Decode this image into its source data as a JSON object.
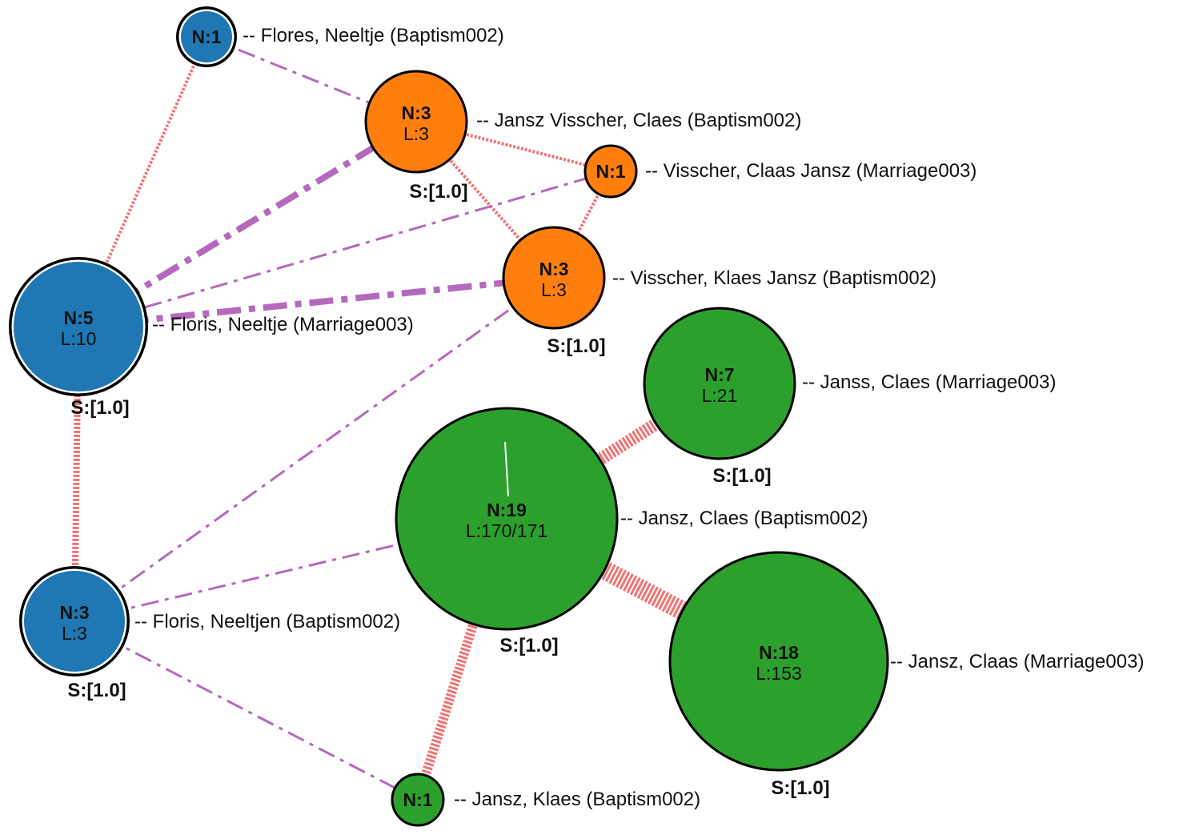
{
  "colors": {
    "blue": "#1f77b4",
    "orange": "#ff7f0e",
    "green": "#2ca02c",
    "strong_link": "#f07474",
    "weak_link": "#b469bd"
  },
  "nodes": [
    {
      "id": "flores_neeltje_b",
      "group": "blue",
      "count": "N:1",
      "links": "",
      "score": "",
      "label": "-- Flores, Neeltje (Baptism002)",
      "ring": true
    },
    {
      "id": "jansz_visscher_claes_b",
      "group": "orange",
      "count": "N:3",
      "links": "L:3",
      "score": "S:[1.0]",
      "label": "-- Jansz Visscher, Claes (Baptism002)",
      "ring": false
    },
    {
      "id": "visscher_claas_jansz_m",
      "group": "orange",
      "count": "N:1",
      "links": "",
      "score": "",
      "label": "-- Visscher, Claas Jansz (Marriage003)",
      "ring": false
    },
    {
      "id": "visscher_klaes_jansz_b",
      "group": "orange",
      "count": "N:3",
      "links": "L:3",
      "score": "S:[1.0]",
      "label": "-- Visscher, Klaes Jansz (Baptism002)",
      "ring": false
    },
    {
      "id": "floris_neeltje_m",
      "group": "blue",
      "count": "N:5",
      "links": "L:10",
      "score": "S:[1.0]",
      "label": "-- Floris, Neeltje (Marriage003)",
      "ring": true
    },
    {
      "id": "janss_claes_m",
      "group": "green",
      "count": "N:7",
      "links": "L:21",
      "score": "S:[1.0]",
      "label": "-- Janss, Claes (Marriage003)",
      "ring": false
    },
    {
      "id": "jansz_claes_b",
      "group": "green",
      "count": "N:19",
      "links": "L:170/171",
      "score": "S:[1.0]",
      "label": "-- Jansz, Claes (Baptism002)",
      "ring": false
    },
    {
      "id": "floris_neeltjen_b",
      "group": "blue",
      "count": "N:3",
      "links": "L:3",
      "score": "S:[1.0]",
      "label": "-- Floris, Neeltjen (Baptism002)",
      "ring": true
    },
    {
      "id": "jansz_claas_m",
      "group": "green",
      "count": "N:18",
      "links": "L:153",
      "score": "S:[1.0]",
      "label": "-- Jansz, Claas (Marriage003)",
      "ring": false
    },
    {
      "id": "jansz_klaes_b",
      "group": "green",
      "count": "N:1",
      "links": "",
      "score": "",
      "label": "-- Jansz, Klaes (Baptism002)",
      "ring": false
    }
  ],
  "edges": [
    {
      "source": "flores_neeltje_b",
      "target": "floris_neeltje_m",
      "kind": "strong",
      "weight": 1
    },
    {
      "source": "flores_neeltje_b",
      "target": "jansz_visscher_claes_b",
      "kind": "weak",
      "weight": 1
    },
    {
      "source": "jansz_visscher_claes_b",
      "target": "visscher_claas_jansz_m",
      "kind": "strong",
      "weight": 1
    },
    {
      "source": "jansz_visscher_claes_b",
      "target": "visscher_klaes_jansz_b",
      "kind": "strong",
      "weight": 1
    },
    {
      "source": "visscher_claas_jansz_m",
      "target": "visscher_klaes_jansz_b",
      "kind": "strong",
      "weight": 1
    },
    {
      "source": "floris_neeltje_m",
      "target": "jansz_visscher_claes_b",
      "kind": "weak",
      "weight": 3
    },
    {
      "source": "floris_neeltje_m",
      "target": "visscher_claas_jansz_m",
      "kind": "weak",
      "weight": 1
    },
    {
      "source": "floris_neeltje_m",
      "target": "visscher_klaes_jansz_b",
      "kind": "weak",
      "weight": 3
    },
    {
      "source": "floris_neeltje_m",
      "target": "floris_neeltjen_b",
      "kind": "strong",
      "weight": 2
    },
    {
      "source": "floris_neeltjen_b",
      "target": "visscher_klaes_jansz_b",
      "kind": "weak",
      "weight": 1
    },
    {
      "source": "floris_neeltjen_b",
      "target": "jansz_claes_b",
      "kind": "weak",
      "weight": 1
    },
    {
      "source": "floris_neeltjen_b",
      "target": "jansz_klaes_b",
      "kind": "weak",
      "weight": 1
    },
    {
      "source": "jansz_claes_b",
      "target": "janss_claes_m",
      "kind": "strong",
      "weight": 4
    },
    {
      "source": "jansz_claes_b",
      "target": "jansz_claas_m",
      "kind": "strong",
      "weight": 6
    },
    {
      "source": "jansz_claes_b",
      "target": "jansz_klaes_b",
      "kind": "strong",
      "weight": 3
    }
  ]
}
